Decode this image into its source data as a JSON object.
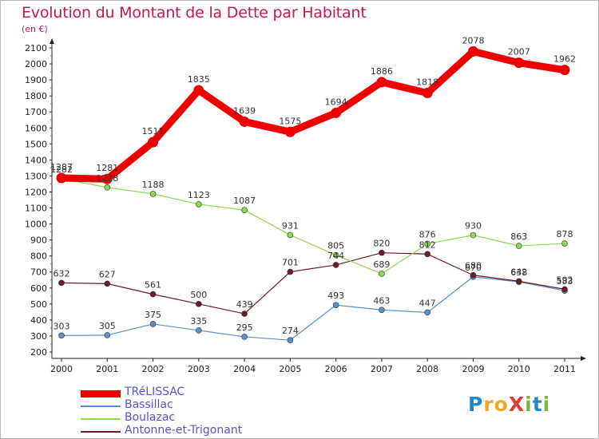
{
  "header": {
    "title": "Evolution du Montant de la Dette par Habitant",
    "unit": "(en €)"
  },
  "logo": {
    "text": "ProXiti",
    "letters": [
      "P",
      "r",
      "o",
      "X",
      "i",
      "t",
      "i"
    ],
    "colors": [
      "#1e88c9",
      "#f5a623",
      "#f5a623",
      "#e53935",
      "#7cb342",
      "#1e88c9",
      "#7cb342"
    ]
  },
  "chart_data": {
    "type": "line",
    "title": "Evolution du Montant de la Dette par Habitant",
    "xlabel": "",
    "ylabel": "(en €)",
    "categories": [
      "2000",
      "2001",
      "2002",
      "2003",
      "2004",
      "2005",
      "2006",
      "2007",
      "2008",
      "2009",
      "2010",
      "2011"
    ],
    "ylim": [
      200,
      2100
    ],
    "yticks": [
      200,
      300,
      400,
      500,
      600,
      700,
      800,
      900,
      1000,
      1100,
      1200,
      1300,
      1400,
      1500,
      1600,
      1700,
      1800,
      1900,
      2000,
      2100
    ],
    "grid": false,
    "legend_position": "bottom-left",
    "series": [
      {
        "name": "TRéLISSAC",
        "color": "#ee0000",
        "values": [
          1287,
          1281,
          1511,
          1835,
          1639,
          1575,
          1694,
          1886,
          1818,
          2078,
          2007,
          1962
        ]
      },
      {
        "name": "Bassillac",
        "color": "#5b8fc7",
        "values": [
          303,
          305,
          375,
          335,
          295,
          274,
          493,
          463,
          447,
          670,
          638,
          583
        ]
      },
      {
        "name": "Boulazac",
        "color": "#90d750",
        "values": [
          1282,
          1228,
          1188,
          1123,
          1087,
          931,
          805,
          689,
          876,
          930,
          863,
          878
        ]
      },
      {
        "name": "Antonne-et-Trigonant",
        "color": "#6b1a26",
        "values": [
          632,
          627,
          561,
          500,
          439,
          701,
          744,
          820,
          812,
          680,
          642,
          592
        ]
      }
    ]
  }
}
